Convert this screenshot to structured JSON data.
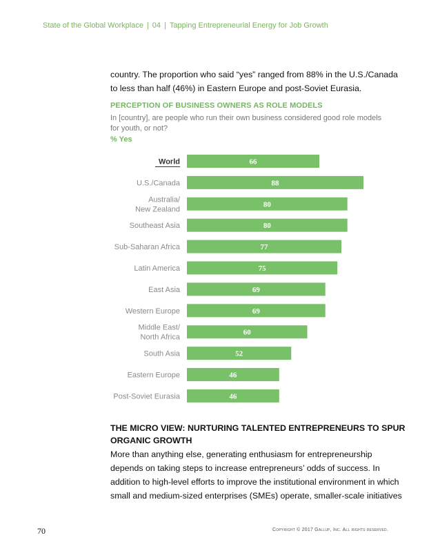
{
  "header": {
    "publication": "State of the Global Workplace",
    "chapter_number": "04",
    "chapter_title": "Tapping Entrepreneurial Energy for Job Growth",
    "separator": "|"
  },
  "intro_text": "country. The proportion who said “yes” ranged from 88% in the U.S./Canada to less than half (46%) in Eastern Europe and post-Soviet Eurasia.",
  "chart_data": {
    "type": "bar",
    "orientation": "horizontal",
    "title": "PERCEPTION OF BUSINESS OWNERS AS ROLE MODELS",
    "subtitle": "In [country], are people who run their own business considered good role models for youth, or not?",
    "unit_label": "% Yes",
    "categories": [
      [
        "World"
      ],
      [
        "U.S./Canada"
      ],
      [
        "Australia/",
        "New Zealand"
      ],
      [
        "Southeast Asia"
      ],
      [
        "Sub-Saharan Africa"
      ],
      [
        "Latin America"
      ],
      [
        "East Asia"
      ],
      [
        "Western Europe"
      ],
      [
        "Middle East/",
        "North Africa"
      ],
      [
        "South Asia"
      ],
      [
        "Eastern Europe"
      ],
      [
        "Post-Soviet Eurasia"
      ]
    ],
    "values": [
      66,
      88,
      80,
      80,
      77,
      75,
      69,
      69,
      60,
      52,
      46,
      46
    ],
    "highlight_index": 0,
    "xlim": [
      0,
      88
    ],
    "grid": false,
    "colors": {
      "bar": "#79c169",
      "bar_label": "#ffffff",
      "category_label": "#8a8a8a",
      "highlight_label": "#333333"
    }
  },
  "section": {
    "heading": "THE MICRO VIEW: NURTURING TALENTED ENTREPRENEURS TO SPUR ORGANIC GROWTH",
    "body": "More than anything else, generating enthusiasm for entrepreneurship depends on taking steps to increase entrepreneurs’ odds of success. In addition to high-level efforts to improve the institutional environment in which small and medium-sized enterprises (SMEs) operate, smaller-scale initiatives"
  },
  "footer": {
    "page_number": "70",
    "copyright": "Copyright © 2017 Gallup, Inc. All rights reserved."
  }
}
